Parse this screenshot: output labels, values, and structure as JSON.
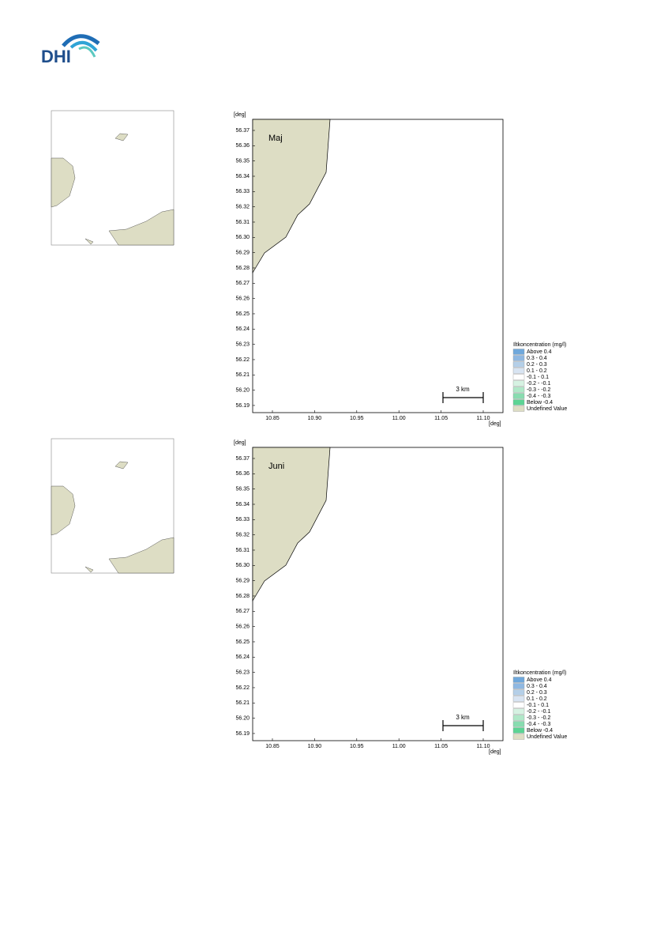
{
  "logo": "DHI",
  "figures": [
    {
      "label": "Maj",
      "y_unit": "[deg]",
      "x_unit": "[deg]",
      "yticks": [
        "56.37",
        "56.36",
        "56.35",
        "56.34",
        "56.33",
        "56.32",
        "56.31",
        "56.30",
        "56.29",
        "56.28",
        "56.27",
        "56.26",
        "56.25",
        "56.24",
        "56.23",
        "56.22",
        "56.21",
        "56.20",
        "56.19"
      ],
      "xticks": [
        "10.85",
        "10.90",
        "10.95",
        "11.00",
        "11.05",
        "11.10"
      ],
      "scale_bar": "3 km",
      "legend": {
        "title": "Iltkoncentration (mg/l)",
        "entries": [
          "Above  0.4",
          "0.3 -  0.4",
          "0.2 -  0.3",
          "0.1 -  0.2",
          "-0.1 -  0.1",
          "-0.2 - -0.1",
          "-0.3 - -0.2",
          "-0.4 - -0.3",
          "Below -0.4",
          "Undefined Value"
        ]
      }
    },
    {
      "label": "Juni",
      "y_unit": "[deg]",
      "x_unit": "[deg]",
      "yticks": [
        "56.37",
        "56.36",
        "56.35",
        "56.34",
        "56.33",
        "56.32",
        "56.31",
        "56.30",
        "56.29",
        "56.28",
        "56.27",
        "56.26",
        "56.25",
        "56.24",
        "56.23",
        "56.22",
        "56.21",
        "56.20",
        "56.19"
      ],
      "xticks": [
        "10.85",
        "10.90",
        "10.95",
        "11.00",
        "11.05",
        "11.10"
      ],
      "scale_bar": "3 km",
      "legend": {
        "title": "Iltkoncentration (mg/l)",
        "entries": [
          "Above  0.4",
          "0.3 -  0.4",
          "0.2 -  0.3",
          "0.1 -  0.2",
          "-0.1 -  0.1",
          "-0.2 - -0.1",
          "-0.3 - -0.2",
          "-0.4 - -0.3",
          "Below -0.4",
          "Undefined Value"
        ]
      }
    }
  ]
}
